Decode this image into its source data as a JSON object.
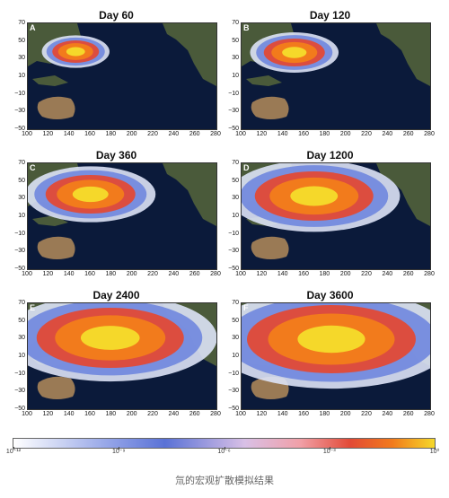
{
  "panels": [
    {
      "title": "Day 60",
      "letter": "A",
      "spread": 0.15
    },
    {
      "title": "Day 120",
      "letter": "B",
      "spread": 0.25
    },
    {
      "title": "Day 360",
      "letter": "C",
      "spread": 0.45
    },
    {
      "title": "Day 1200",
      "letter": "D",
      "spread": 0.65
    },
    {
      "title": "Day 2400",
      "letter": "E",
      "spread": 0.85
    },
    {
      "title": "Day 3600",
      "letter": "F",
      "spread": 1.0
    }
  ],
  "y_ticks": [
    "70",
    "50",
    "30",
    "10",
    "−10",
    "−30",
    "−50"
  ],
  "x_ticks": [
    "100",
    "120",
    "140",
    "160",
    "180",
    "200",
    "220",
    "240",
    "260",
    "280"
  ],
  "colorbar": {
    "tick_labels": [
      "10⁻¹²",
      "10⁻⁹",
      "10⁻⁶",
      "10⁻³",
      "10⁰"
    ]
  },
  "caption": "氚的宏观扩散模拟结果",
  "colors": {
    "ocean": "#0b1a3a",
    "land": "#4a5a3a",
    "desert": "#9a7a55",
    "hot": "#f27b1c",
    "core": "#f5d82a",
    "warm": "#e24a36",
    "cool": "#6a82de",
    "faint": "#dde3f7"
  }
}
